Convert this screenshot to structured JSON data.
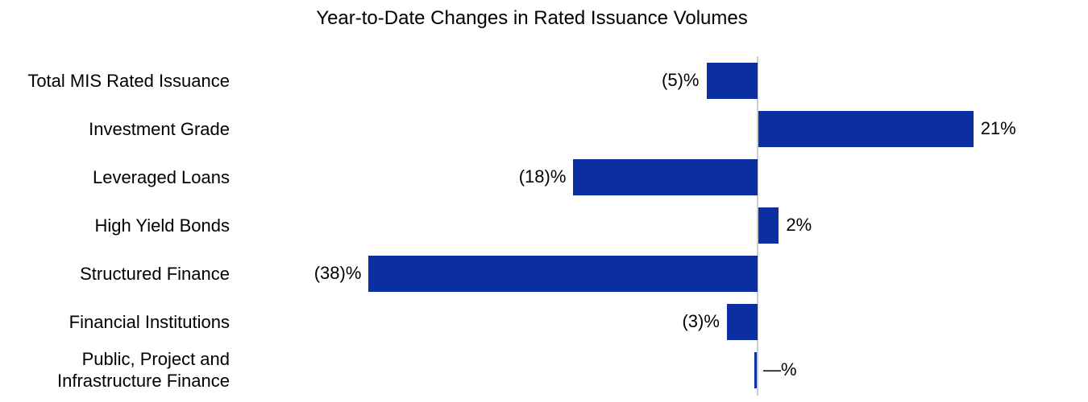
{
  "chart_data": {
    "type": "bar",
    "orientation": "horizontal",
    "title": "Year-to-Date Changes in Rated Issuance Volumes",
    "categories": [
      "Total MIS Rated Issuance",
      "Investment Grade",
      "Leveraged Loans",
      "High Yield Bonds",
      "Structured Finance",
      "Financial Institutions",
      "Public, Project and Infrastructure Finance"
    ],
    "values": [
      -5,
      21,
      -18,
      2,
      -38,
      -3,
      0
    ],
    "value_labels": [
      "(5)%",
      "21%",
      "(18)%",
      "2%",
      "(38)%",
      "(3)%",
      "—%"
    ],
    "unit": "%",
    "negative_convention": "parentheses",
    "legend": "none",
    "grid": false,
    "value_axis": {
      "ticks_visible": false,
      "approx_range": [
        -50,
        32
      ]
    },
    "colors": {
      "bar": "#0b2fa0",
      "baseline": "#cccccc",
      "text": "#000000",
      "background": "#ffffff"
    }
  }
}
